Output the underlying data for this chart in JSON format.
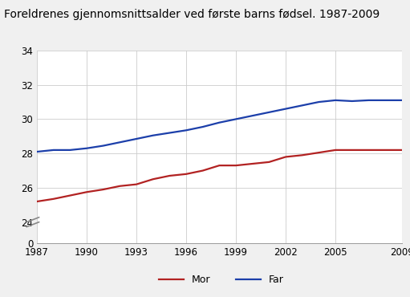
{
  "title": "Foreldrenes gjennomsnittsalder ved første barns fødsel. 1987-2009",
  "years": [
    1987,
    1988,
    1989,
    1990,
    1991,
    1992,
    1993,
    1994,
    1995,
    1996,
    1997,
    1998,
    1999,
    2000,
    2001,
    2002,
    2003,
    2004,
    2005,
    2006,
    2007,
    2008,
    2009
  ],
  "mor": [
    25.2,
    25.35,
    25.55,
    25.75,
    25.9,
    26.1,
    26.2,
    26.5,
    26.7,
    26.8,
    27.0,
    27.3,
    27.3,
    27.4,
    27.5,
    27.8,
    27.9,
    28.05,
    28.2,
    28.2,
    28.2,
    28.2,
    28.2
  ],
  "far": [
    28.1,
    28.2,
    28.2,
    28.3,
    28.45,
    28.65,
    28.85,
    29.05,
    29.2,
    29.35,
    29.55,
    29.8,
    30.0,
    30.2,
    30.4,
    30.6,
    30.8,
    31.0,
    31.1,
    31.05,
    31.1,
    31.1,
    31.1
  ],
  "mor_color": "#b22222",
  "far_color": "#1c3faa",
  "bg_color": "#f0f0f0",
  "plot_bg_color": "#ffffff",
  "grid_color": "#cccccc",
  "yticks_upper": [
    24,
    26,
    28,
    30,
    32,
    34
  ],
  "ytick_zero": 0,
  "xticks": [
    1987,
    1990,
    1993,
    1996,
    1999,
    2002,
    2005,
    2009
  ],
  "legend_mor": "Mor",
  "legend_far": "Far",
  "line_width": 1.6,
  "title_fontsize": 10,
  "tick_fontsize": 8.5,
  "legend_fontsize": 9
}
